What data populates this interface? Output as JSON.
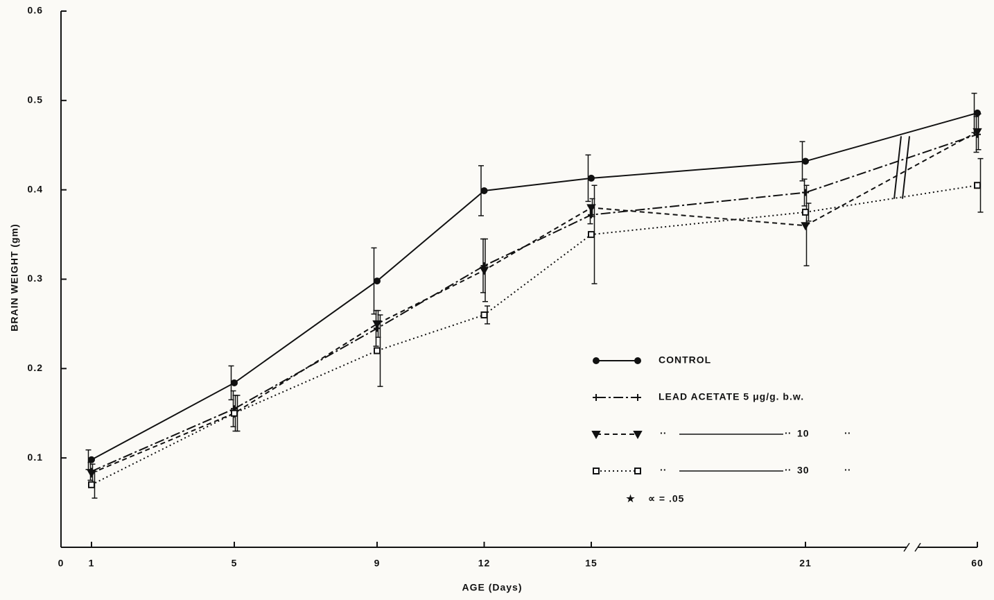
{
  "chart_data": {
    "type": "line",
    "x_label": "AGE (Days)",
    "y_label": "BRAIN WEIGHT (gm)",
    "x": [
      1,
      5,
      9,
      12,
      15,
      21,
      60
    ],
    "xlim": [
      0,
      60
    ],
    "xticks": [
      0,
      1,
      5,
      9,
      12,
      15,
      21,
      60
    ],
    "xbreak": [
      21,
      60
    ],
    "ylim": [
      0,
      0.6
    ],
    "yticks": [
      0.1,
      0.2,
      0.3,
      0.4,
      0.5,
      0.6
    ],
    "grid": false,
    "legend_position": "lower right",
    "ditto_mark": "..",
    "note": "∝ = .05",
    "series": [
      {
        "name": "CONTROL",
        "color": "#111111",
        "dash": "solid",
        "marker": "circle",
        "values": [
          0.098,
          0.184,
          0.298,
          0.399,
          0.413,
          0.432,
          0.486
        ],
        "errors": [
          0.011,
          0.019,
          0.037,
          0.028,
          0.026,
          0.022,
          0.022
        ]
      },
      {
        "name": "LEAD ACETATE 5 μg/g. b.w.",
        "color": "#111111",
        "dash": "dashdot",
        "marker": "cross",
        "values": [
          0.085,
          0.155,
          0.245,
          0.315,
          0.372,
          0.397,
          0.462
        ],
        "errors": [
          0.01,
          0.02,
          0.02,
          0.03,
          0.01,
          0.015,
          0.02
        ]
      },
      {
        "name": "10",
        "color": "#111111",
        "dash": "dashed",
        "marker": "triangle",
        "values": [
          0.083,
          0.15,
          0.25,
          0.31,
          0.38,
          0.36,
          0.465
        ],
        "errors": [
          0.01,
          0.02,
          0.015,
          0.035,
          0.01,
          0.045,
          0.02
        ]
      },
      {
        "name": "30",
        "color": "#111111",
        "dash": "dotted",
        "marker": "square",
        "values": [
          0.07,
          0.15,
          0.22,
          0.26,
          0.35,
          0.375,
          0.405
        ],
        "errors": [
          0.015,
          0.02,
          0.04,
          0.01,
          0.055,
          0.01,
          0.03
        ]
      }
    ]
  }
}
